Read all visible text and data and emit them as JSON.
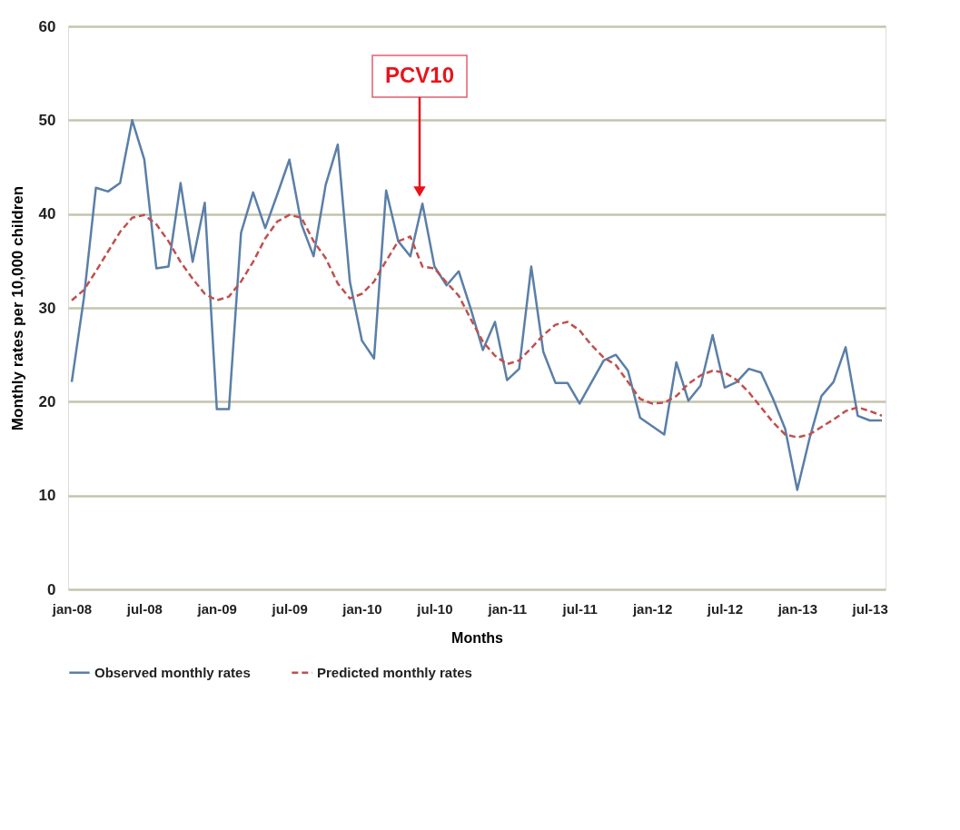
{
  "chart_data": {
    "type": "line",
    "xlabel": "Months",
    "ylabel": "Monthly rates per 10,000 children",
    "categories": [
      "jan-08",
      null,
      null,
      null,
      null,
      null,
      "jul-08",
      null,
      null,
      null,
      null,
      null,
      "jan-09",
      null,
      null,
      null,
      null,
      null,
      "jul-09",
      null,
      null,
      null,
      null,
      null,
      "jan-10",
      null,
      null,
      null,
      null,
      null,
      "jul-10",
      null,
      null,
      null,
      null,
      null,
      "jan-11",
      null,
      null,
      null,
      null,
      null,
      "jul-11",
      null,
      null,
      null,
      null,
      null,
      "jan-12",
      null,
      null,
      null,
      null,
      null,
      "jul-12",
      null,
      null,
      null,
      null,
      null,
      "jan-13",
      null,
      null,
      null,
      null,
      null,
      "jul-13",
      null
    ],
    "series": [
      {
        "name": "Observed monthly rates",
        "color": "#5a7fa8",
        "line_style": "solid",
        "values": [
          22.1,
          31,
          42.8,
          42.4,
          43.3,
          50,
          45.8,
          34.2,
          34.4,
          43.3,
          34.9,
          41.2,
          19.2,
          19.2,
          38,
          42.3,
          38.5,
          42.1,
          45.8,
          38.9,
          35.5,
          43.1,
          47.4,
          32.8,
          26.5,
          24.6,
          42.5,
          37.1,
          35.5,
          41.1,
          34.4,
          32.4,
          33.9,
          29.9,
          25.5,
          28.5,
          22.3,
          23.5,
          34.4,
          25.3,
          22,
          22,
          19.8,
          22.1,
          24.4,
          25,
          23.3,
          18.3,
          17.4,
          16.5,
          24.2,
          20.1,
          21.7,
          27.1,
          21.5,
          22.1,
          23.5,
          23.1,
          20.3,
          17.1,
          10.6,
          16,
          20.6,
          22.1,
          25.8,
          18.5,
          18,
          18
        ]
      },
      {
        "name": "Predicted monthly rates",
        "color": "#c0504d",
        "line_style": "dashed",
        "values": [
          30.8,
          31.9,
          33.9,
          36,
          38.1,
          39.6,
          39.9,
          38.9,
          37.1,
          34.9,
          33.1,
          31.5,
          30.8,
          31.2,
          32.8,
          34.9,
          37.4,
          39.2,
          39.9,
          39.6,
          37.1,
          35.3,
          32.6,
          31,
          31.5,
          32.8,
          35,
          37.1,
          37.6,
          34.4,
          34.2,
          32.7,
          31.3,
          28.8,
          26.4,
          24.9,
          24,
          24.4,
          25.7,
          27.1,
          28.2,
          28.5,
          27.6,
          26,
          24.7,
          23.9,
          22.1,
          20.3,
          19.8,
          19.9,
          20.6,
          21.9,
          22.8,
          23.3,
          23.1,
          22.3,
          21,
          19.4,
          17.8,
          16.5,
          16.2,
          16.5,
          17.3,
          18.1,
          19,
          19.4,
          19,
          18.5
        ]
      }
    ],
    "ylim": [
      0,
      60
    ],
    "yticks": [
      0,
      10,
      20,
      30,
      40,
      50,
      60
    ],
    "grid": "y",
    "legend": "bottom",
    "annotations": [
      "PCV10"
    ]
  }
}
